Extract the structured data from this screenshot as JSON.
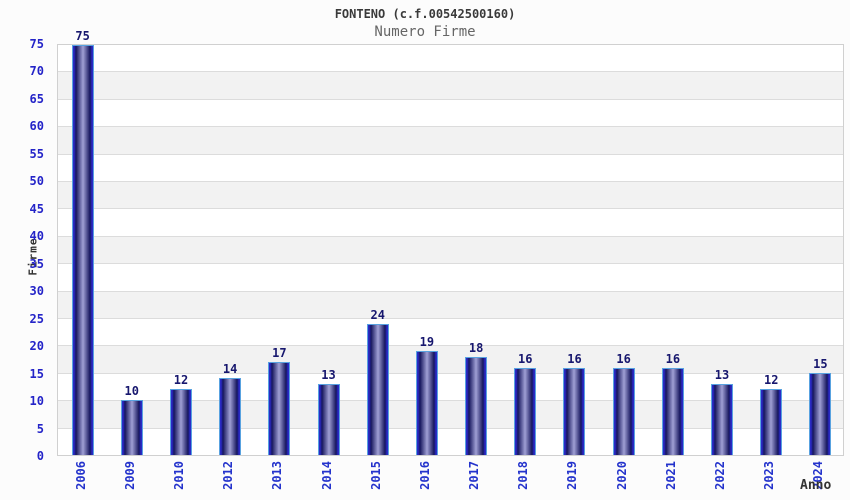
{
  "chart_data": {
    "type": "bar",
    "title": "FONTENO (c.f.00542500160)",
    "subtitle": "Numero Firme",
    "xlabel": "Anno",
    "ylabel": "Firme",
    "categories": [
      "2006",
      "2009",
      "2010",
      "2012",
      "2013",
      "2014",
      "2015",
      "2016",
      "2017",
      "2018",
      "2019",
      "2020",
      "2021",
      "2022",
      "2023",
      "2024"
    ],
    "values": [
      75,
      10,
      12,
      14,
      17,
      13,
      24,
      19,
      18,
      16,
      16,
      16,
      16,
      13,
      12,
      15
    ],
    "value_labels_shown": true,
    "ylim": [
      0,
      75
    ],
    "ytick_step": 5,
    "yticks": [
      0,
      5,
      10,
      15,
      20,
      25,
      30,
      35,
      40,
      45,
      50,
      55,
      60,
      65,
      70,
      75
    ],
    "grid": "horizontal lines with alternating bands",
    "legend": "none",
    "colors": {
      "tick_label_blue": "#2424c8",
      "xtick_label_blue": "#2433cc",
      "value_label_navy": "#17176e",
      "bar_outline_lightblue": "#58a2e0",
      "bar_edge_blue": "#2a2ac6",
      "bar_dark_navy": "#16165e",
      "bar_center_light": "#a0a0d4",
      "band_white": "#ffffff",
      "band_gray": "#f2f2f2",
      "gridline": "#dcdcdc",
      "plot_border": "#d0d0d0",
      "title_color": "#3a3a3a",
      "subtitle_color": "#666666",
      "axis_title_color": "#333333"
    }
  }
}
